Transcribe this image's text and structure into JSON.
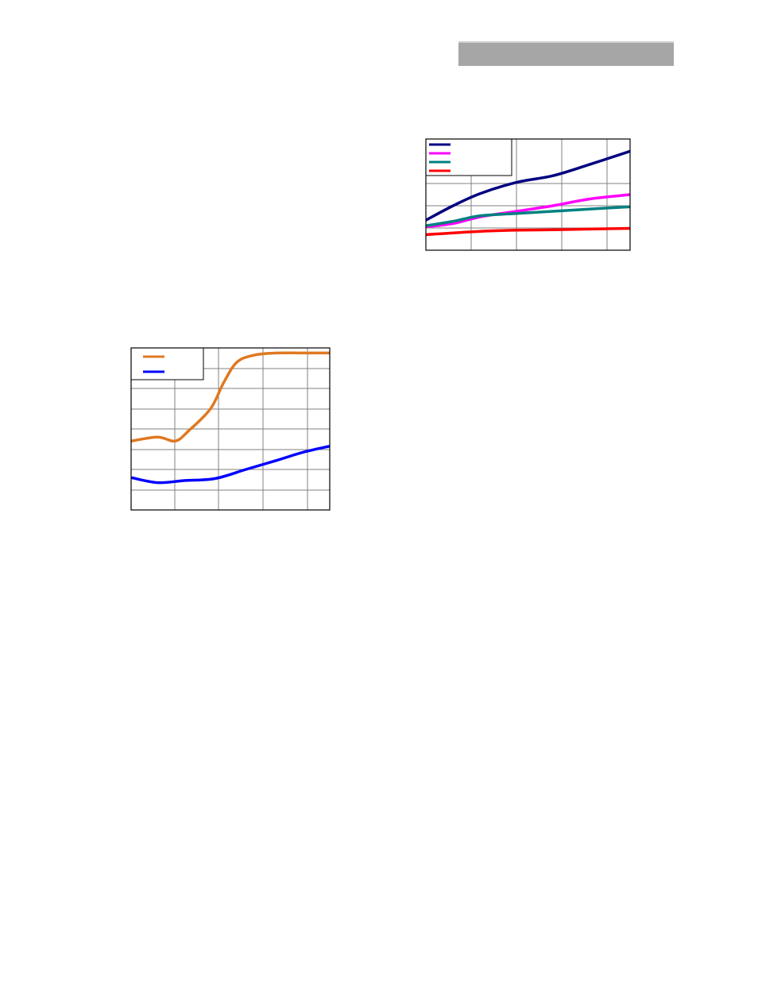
{
  "header": {
    "label": "",
    "color": "#a6a6a6"
  },
  "chart_data": [
    {
      "type": "line",
      "legend": "top-left",
      "grid": true,
      "xlim": [
        0,
        4.5
      ],
      "ylim": [
        0,
        5
      ],
      "series": [
        {
          "color": "#000080",
          "x": [
            0,
            0.6,
            1.2,
            2.0,
            2.8,
            3.6,
            4.5
          ],
          "y": [
            1.35,
            2.0,
            2.55,
            3.05,
            3.35,
            3.85,
            4.45
          ]
        },
        {
          "color": "#ff00ff",
          "x": [
            0,
            0.6,
            1.2,
            2.0,
            2.8,
            3.6,
            4.5
          ],
          "y": [
            1.05,
            1.2,
            1.5,
            1.75,
            2.0,
            2.3,
            2.5
          ]
        },
        {
          "color": "#008080",
          "x": [
            0,
            0.6,
            1.2,
            2.0,
            2.8,
            3.6,
            4.5
          ],
          "y": [
            1.1,
            1.3,
            1.55,
            1.65,
            1.75,
            1.85,
            1.95
          ]
        },
        {
          "color": "#ff0000",
          "x": [
            0,
            1.2,
            2.0,
            2.8,
            3.6,
            4.5
          ],
          "y": [
            0.7,
            0.85,
            0.9,
            0.92,
            0.95,
            0.98
          ]
        }
      ]
    },
    {
      "type": "line",
      "legend": "top-left",
      "grid": true,
      "xlim": [
        0,
        4.5
      ],
      "ylim": [
        0,
        8
      ],
      "series": [
        {
          "color": "#e07820",
          "x": [
            0,
            0.6,
            1.0,
            1.3,
            1.8,
            2.1,
            2.4,
            2.8,
            3.3,
            3.9,
            4.5
          ],
          "y": [
            3.4,
            3.6,
            3.4,
            3.9,
            5.0,
            6.3,
            7.3,
            7.65,
            7.75,
            7.75,
            7.75
          ]
        },
        {
          "color": "#0000ff",
          "x": [
            0,
            0.6,
            1.2,
            1.9,
            2.6,
            3.3,
            3.9,
            4.5
          ],
          "y": [
            1.6,
            1.35,
            1.45,
            1.55,
            2.0,
            2.45,
            2.85,
            3.15
          ]
        }
      ]
    }
  ]
}
